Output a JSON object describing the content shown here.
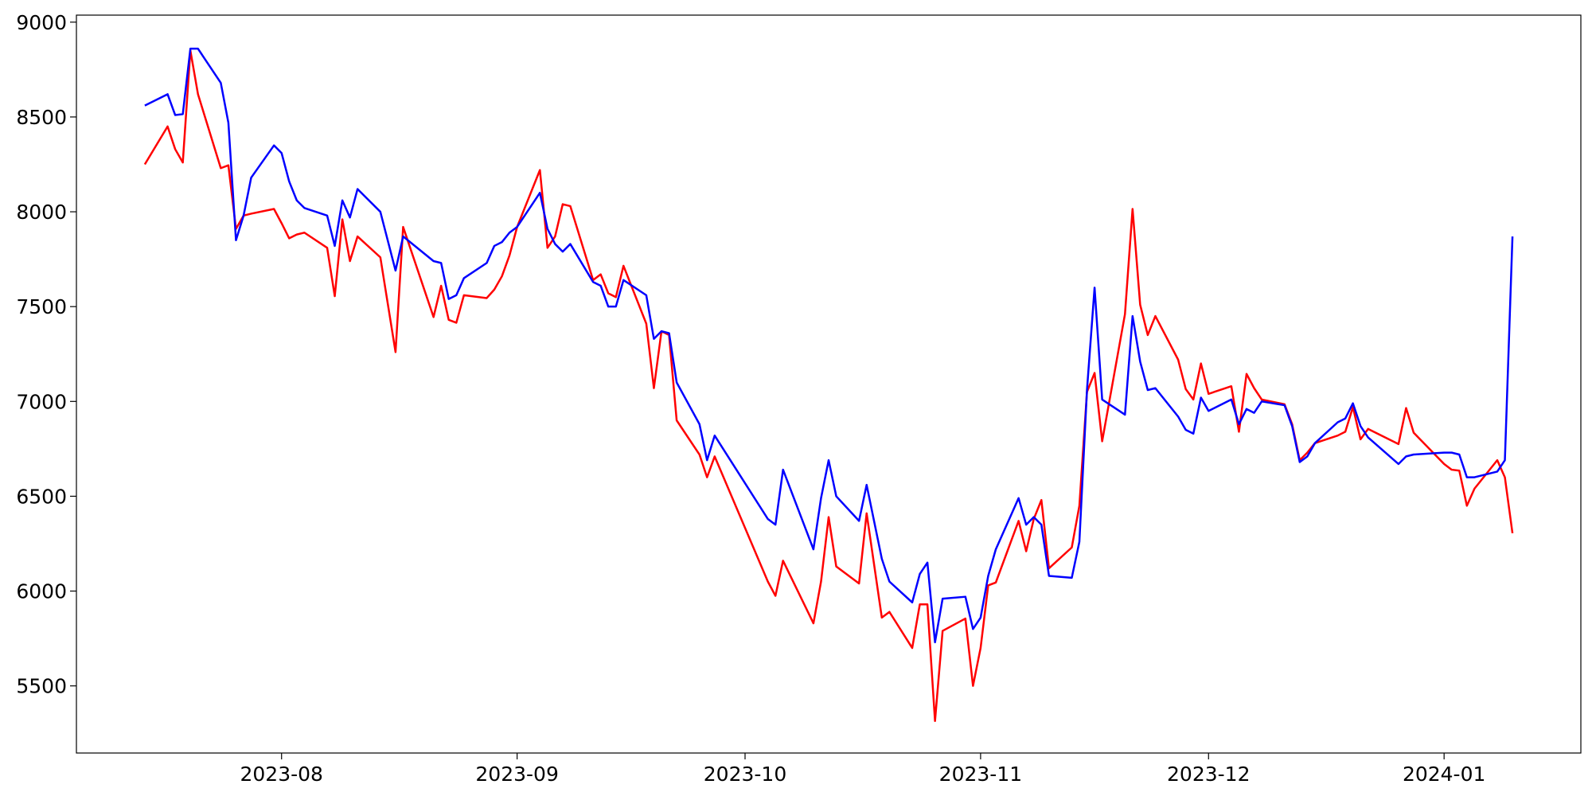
{
  "chart_data": {
    "type": "line",
    "x": [
      "2023-07-14",
      "2023-07-17",
      "2023-07-18",
      "2023-07-19",
      "2023-07-20",
      "2023-07-21",
      "2023-07-24",
      "2023-07-25",
      "2023-07-26",
      "2023-07-27",
      "2023-07-28",
      "2023-07-31",
      "2023-08-01",
      "2023-08-02",
      "2023-08-03",
      "2023-08-04",
      "2023-08-07",
      "2023-08-08",
      "2023-08-09",
      "2023-08-10",
      "2023-08-11",
      "2023-08-14",
      "2023-08-16",
      "2023-08-17",
      "2023-08-21",
      "2023-08-22",
      "2023-08-23",
      "2023-08-24",
      "2023-08-25",
      "2023-08-28",
      "2023-08-29",
      "2023-08-30",
      "2023-08-31",
      "2023-09-01",
      "2023-09-04",
      "2023-09-05",
      "2023-09-06",
      "2023-09-07",
      "2023-09-08",
      "2023-09-11",
      "2023-09-12",
      "2023-09-13",
      "2023-09-14",
      "2023-09-15",
      "2023-09-18",
      "2023-09-19",
      "2023-09-20",
      "2023-09-21",
      "2023-09-22",
      "2023-09-25",
      "2023-09-26",
      "2023-09-27",
      "2023-10-04",
      "2023-10-05",
      "2023-10-06",
      "2023-10-10",
      "2023-10-11",
      "2023-10-12",
      "2023-10-13",
      "2023-10-16",
      "2023-10-17",
      "2023-10-19",
      "2023-10-20",
      "2023-10-23",
      "2023-10-24",
      "2023-10-25",
      "2023-10-26",
      "2023-10-27",
      "2023-10-30",
      "2023-10-31",
      "2023-11-01",
      "2023-11-02",
      "2023-11-03",
      "2023-11-06",
      "2023-11-07",
      "2023-11-08",
      "2023-11-09",
      "2023-11-10",
      "2023-11-13",
      "2023-11-14",
      "2023-11-15",
      "2023-11-16",
      "2023-11-17",
      "2023-11-20",
      "2023-11-21",
      "2023-11-22",
      "2023-11-23",
      "2023-11-24",
      "2023-11-27",
      "2023-11-28",
      "2023-11-29",
      "2023-11-30",
      "2023-12-01",
      "2023-12-04",
      "2023-12-05",
      "2023-12-06",
      "2023-12-07",
      "2023-12-08",
      "2023-12-11",
      "2023-12-12",
      "2023-12-13",
      "2023-12-14",
      "2023-12-15",
      "2023-12-18",
      "2023-12-19",
      "2023-12-20",
      "2023-12-21",
      "2023-12-22",
      "2023-12-26",
      "2023-12-27",
      "2023-12-28",
      "2024-01-01",
      "2024-01-02",
      "2024-01-03",
      "2024-01-04",
      "2024-01-05",
      "2024-01-08",
      "2024-01-09",
      "2024-01-10"
    ],
    "series": [
      {
        "color": "#ff0000",
        "values": [
          8250,
          8450,
          8330,
          8260,
          8850,
          8620,
          8230,
          8245,
          7910,
          7980,
          7990,
          8015,
          7940,
          7860,
          7880,
          7890,
          7810,
          7555,
          7960,
          7740,
          7870,
          7760,
          7260,
          7920,
          7445,
          7610,
          7430,
          7415,
          7560,
          7545,
          7590,
          7660,
          7770,
          7920,
          8220,
          7810,
          7870,
          8040,
          8030,
          7640,
          7670,
          7570,
          7550,
          7715,
          7410,
          7070,
          7370,
          7350,
          6900,
          6720,
          6600,
          6710,
          6050,
          5975,
          6160,
          5830,
          6050,
          6390,
          6130,
          6040,
          6410,
          5860,
          5890,
          5700,
          5930,
          5930,
          5315,
          5790,
          5855,
          5500,
          5700,
          6030,
          6045,
          6370,
          6210,
          6380,
          6480,
          6120,
          6230,
          6450,
          7050,
          7150,
          6790,
          7460,
          8015,
          7510,
          7350,
          7450,
          7220,
          7065,
          7010,
          7200,
          7040,
          7080,
          6840,
          7145,
          7070,
          7010,
          6985,
          6880,
          6690,
          6730,
          6780,
          6820,
          6840,
          6970,
          6800,
          6855,
          6775,
          6965,
          6835,
          6670,
          6640,
          6635,
          6450,
          6540,
          6690,
          6600,
          6305
        ]
      },
      {
        "color": "#0000ff",
        "values": [
          8560,
          8620,
          8510,
          8515,
          8860,
          8860,
          8680,
          8470,
          7850,
          7980,
          8180,
          8350,
          8310,
          8160,
          8060,
          8020,
          7980,
          7820,
          8060,
          7970,
          8120,
          8000,
          7690,
          7870,
          7740,
          7730,
          7540,
          7560,
          7650,
          7730,
          7820,
          7840,
          7890,
          7920,
          8100,
          7910,
          7830,
          7790,
          7830,
          7630,
          7610,
          7500,
          7500,
          7640,
          7560,
          7330,
          7370,
          7360,
          7100,
          6880,
          6690,
          6820,
          6380,
          6350,
          6640,
          6220,
          6490,
          6690,
          6500,
          6370,
          6560,
          6170,
          6050,
          5940,
          6090,
          6150,
          5730,
          5960,
          5970,
          5800,
          5860,
          6080,
          6220,
          6490,
          6350,
          6390,
          6350,
          6080,
          6070,
          6260,
          7060,
          7600,
          7010,
          6930,
          7450,
          7210,
          7060,
          7070,
          6920,
          6850,
          6830,
          7020,
          6950,
          7010,
          6880,
          6960,
          6940,
          7000,
          6980,
          6870,
          6680,
          6710,
          6780,
          6890,
          6910,
          6990,
          6870,
          6810,
          6670,
          6710,
          6720,
          6730,
          6730,
          6720,
          6600,
          6600,
          6630,
          6690,
          7870
        ]
      }
    ],
    "xlim": [
      "2023-07-05",
      "2024-01-19"
    ],
    "xticks": [
      {
        "value": "2023-08-01",
        "label": "2023-08"
      },
      {
        "value": "2023-09-01",
        "label": "2023-09"
      },
      {
        "value": "2023-10-01",
        "label": "2023-10"
      },
      {
        "value": "2023-11-01",
        "label": "2023-11"
      },
      {
        "value": "2023-12-01",
        "label": "2023-12"
      },
      {
        "value": "2024-01-01",
        "label": "2024-01"
      }
    ],
    "ylim": [
      5146,
      9037
    ],
    "yticks": [
      5500,
      6000,
      6500,
      7000,
      7500,
      8000,
      8500,
      9000
    ],
    "grid": false
  }
}
